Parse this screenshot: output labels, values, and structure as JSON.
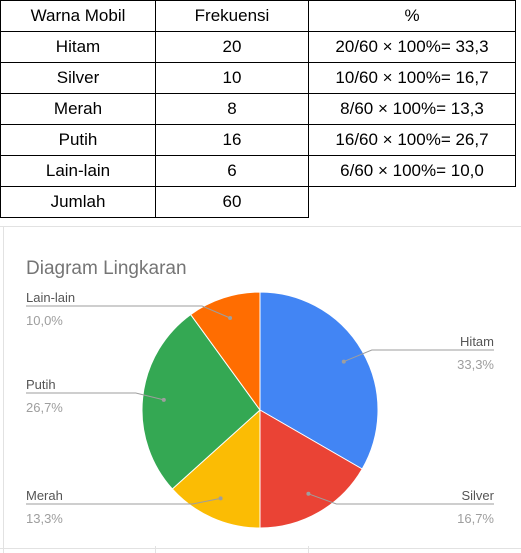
{
  "table": {
    "headers": [
      "Warna Mobil",
      "Frekuensi",
      "%"
    ],
    "rows": [
      [
        "Hitam",
        "20",
        "20/60 × 100%= 33,3"
      ],
      [
        "Silver",
        "10",
        "10/60 × 100%= 16,7"
      ],
      [
        "Merah",
        "8",
        "8/60 × 100%= 13,3"
      ],
      [
        "Putih",
        "16",
        "16/60 × 100%= 26,7"
      ],
      [
        "Lain-lain",
        "6",
        "6/60 × 100%= 10,0"
      ],
      [
        "Jumlah",
        "60",
        ""
      ]
    ]
  },
  "chart_data": {
    "type": "pie",
    "title": "Diagram Lingkaran",
    "categories": [
      "Hitam",
      "Silver",
      "Merah",
      "Putih",
      "Lain-lain"
    ],
    "values": [
      20,
      10,
      8,
      16,
      6
    ],
    "percent_labels": [
      "33,3%",
      "16,7%",
      "13,3%",
      "26,7%",
      "10,0%"
    ],
    "colors": [
      "#4285f4",
      "#ea4335",
      "#fbbc04",
      "#34a853",
      "#ff6d01"
    ],
    "start_angle_deg": 0,
    "direction": "clockwise",
    "legend": "labels-with-leader-lines"
  }
}
